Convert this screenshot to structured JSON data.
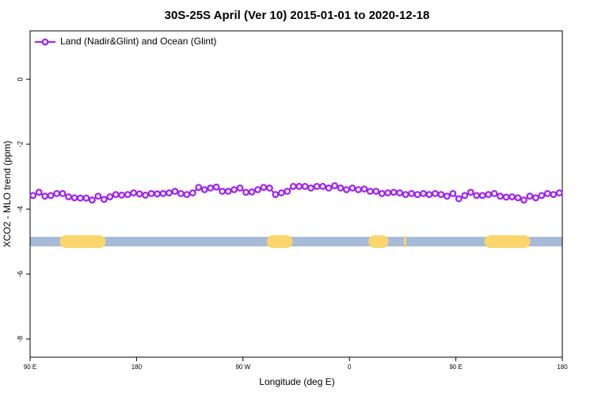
{
  "chart_data": {
    "type": "line",
    "title": "30S-25S April (Ver 10)   2015-01-01 to 2020-12-18",
    "xlabel": "Longitude (deg E)",
    "ylabel": "XCO2 - MLO trend (ppm)",
    "xlim": [
      90,
      540
    ],
    "xticks": [
      {
        "value": 90,
        "label": "90 E"
      },
      {
        "value": 180,
        "label": "180"
      },
      {
        "value": 270,
        "label": "90 W"
      },
      {
        "value": 360,
        "label": "0"
      },
      {
        "value": 450,
        "label": "90 E"
      },
      {
        "value": 540,
        "label": "180"
      }
    ],
    "ylim": [
      -8.56,
      1.49
    ],
    "yticks": [
      0,
      -2,
      -4,
      -6,
      -8
    ],
    "legend": "top-left",
    "x": [
      92.5,
      97.5,
      102.5,
      107.5,
      112.5,
      117.5,
      122.5,
      127.5,
      132.5,
      137.5,
      142.5,
      147.5,
      152.5,
      157.5,
      162.5,
      167.5,
      172.5,
      177.5,
      182.5,
      187.5,
      192.5,
      197.5,
      202.5,
      207.5,
      212.5,
      217.5,
      222.5,
      227.5,
      232.5,
      237.5,
      242.5,
      247.5,
      252.5,
      257.5,
      262.5,
      267.5,
      272.5,
      277.5,
      282.5,
      287.5,
      292.5,
      297.5,
      302.5,
      307.5,
      312.5,
      317.5,
      322.5,
      327.5,
      332.5,
      337.5,
      342.5,
      347.5,
      352.5,
      357.5,
      362.5,
      367.5,
      372.5,
      377.5,
      382.5,
      387.5,
      392.5,
      397.5,
      402.5,
      407.5,
      412.5,
      417.5,
      422.5,
      427.5,
      432.5,
      437.5,
      442.5,
      447.5,
      452.5,
      457.5,
      462.5,
      467.5,
      472.5,
      477.5,
      482.5,
      487.5,
      492.5,
      497.5,
      502.5,
      507.5,
      512.5,
      517.5,
      522.5,
      527.5,
      532.5,
      537.5
    ],
    "series": [
      {
        "name": "Land (Nadir&Glint) and Ocean (Glint)",
        "color": "#a020f0",
        "values": [
          -3.58,
          -3.48,
          -3.6,
          -3.58,
          -3.52,
          -3.52,
          -3.62,
          -3.65,
          -3.66,
          -3.66,
          -3.72,
          -3.6,
          -3.7,
          -3.62,
          -3.55,
          -3.57,
          -3.55,
          -3.5,
          -3.53,
          -3.57,
          -3.52,
          -3.53,
          -3.52,
          -3.5,
          -3.45,
          -3.52,
          -3.55,
          -3.5,
          -3.33,
          -3.4,
          -3.35,
          -3.32,
          -3.45,
          -3.45,
          -3.4,
          -3.35,
          -3.48,
          -3.47,
          -3.4,
          -3.33,
          -3.35,
          -3.55,
          -3.5,
          -3.45,
          -3.3,
          -3.3,
          -3.3,
          -3.35,
          -3.3,
          -3.3,
          -3.35,
          -3.28,
          -3.35,
          -3.4,
          -3.35,
          -3.4,
          -3.38,
          -3.45,
          -3.45,
          -3.52,
          -3.5,
          -3.48,
          -3.5,
          -3.55,
          -3.52,
          -3.55,
          -3.52,
          -3.55,
          -3.52,
          -3.55,
          -3.6,
          -3.52,
          -3.68,
          -3.58,
          -3.48,
          -3.58,
          -3.58,
          -3.55,
          -3.52,
          -3.6,
          -3.63,
          -3.62,
          -3.65,
          -3.72,
          -3.6,
          -3.65,
          -3.58,
          -3.52,
          -3.55,
          -3.5
        ]
      }
    ],
    "surface_band": {
      "y": -5,
      "ocean_color": "#a5bad6",
      "land_color": "#f9d56b",
      "land": [
        [
          115,
          154
        ],
        [
          290,
          312
        ],
        [
          376,
          393
        ],
        [
          406,
          408
        ],
        [
          474,
          513
        ]
      ]
    }
  }
}
